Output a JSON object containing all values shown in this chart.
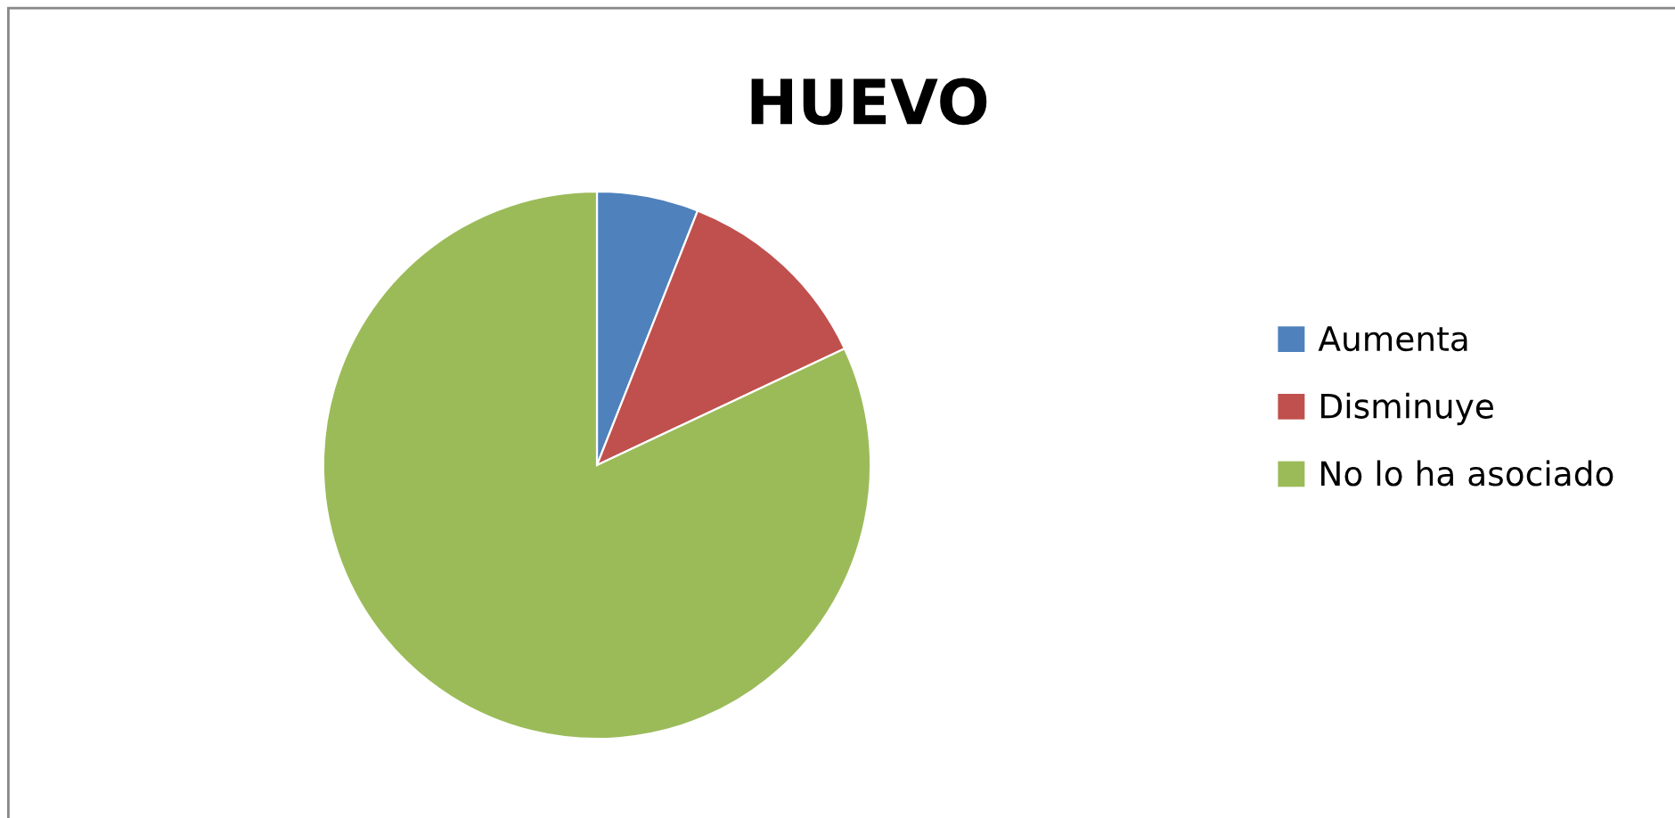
{
  "chart_data": {
    "type": "pie",
    "title": "HUEVO",
    "categories": [
      "Aumenta",
      "Disminuye",
      "No lo ha asociado"
    ],
    "values": [
      6,
      12,
      82
    ],
    "colors": [
      "#4f81bd",
      "#c0504d",
      "#9bbb59"
    ],
    "legend": "right"
  }
}
